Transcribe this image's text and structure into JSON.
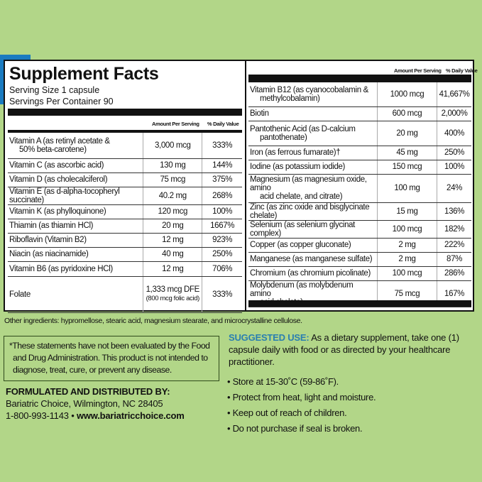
{
  "title": "Supplement Facts",
  "serving_size": "Serving Size 1 capsule",
  "servings_per_container": "Servings Per Container 90",
  "col_amount": "Amount Per Serving",
  "col_dv": "% Daily Value",
  "left_rows": [
    {
      "name": "Vitamin A (as retinyl acetate &",
      "name2": "50% beta-carotene)",
      "amount": "3,000 mcg",
      "dv": "333%"
    },
    {
      "name": "Vitamin C (as ascorbic acid)",
      "amount": "130 mg",
      "dv": "144%"
    },
    {
      "name": "Vitamin D (as cholecalciferol)",
      "amount": "75 mcg",
      "dv": "375%"
    },
    {
      "name": "Vitamin E (as d-alpha-tocopheryl succinate)",
      "amount": "40.2 mg",
      "dv": "268%"
    },
    {
      "name": "Vitamin K (as phylloquinone)",
      "amount": "120 mcg",
      "dv": "100%"
    },
    {
      "name": "Thiamin (as thiamin HCl)",
      "amount": "20 mg",
      "dv": "1667%"
    },
    {
      "name": "Riboflavin (Vitamin B2)",
      "amount": "12 mg",
      "dv": "923%"
    },
    {
      "name": "Niacin (as niacinamide)",
      "amount": "40 mg",
      "dv": "250%"
    },
    {
      "name": "Vitamin B6 (as pyridoxine HCl)",
      "amount": "12 mg",
      "dv": "706%"
    },
    {
      "name": "Folate",
      "amount": "1,333 mcg DFE",
      "amount2": "(800 mcg folic acid)",
      "dv": "333%"
    }
  ],
  "right_rows": [
    {
      "name": "Vitamin B12 (as cyanocobalamin &",
      "name2": "methylcobalamin)",
      "amount": "1000 mcg",
      "dv": "41,667%"
    },
    {
      "name": "Biotin",
      "amount": "600 mcg",
      "dv": "2,000%"
    },
    {
      "name": "Pantothenic Acid (as D-calcium",
      "name2": "pantothenate)",
      "amount": "20 mg",
      "dv": "400%"
    },
    {
      "name": "Iron (as ferrous fumarate)†",
      "amount": "45 mg",
      "dv": "250%"
    },
    {
      "name": "Iodine (as potassium iodide)",
      "amount": "150 mcg",
      "dv": "100%"
    },
    {
      "name": "Magnesium (as magnesium oxide, amino",
      "name2": "acid chelate, and citrate)",
      "amount": "100 mg",
      "dv": "24%"
    },
    {
      "name": "Zinc (as zinc oxide and bisglycinate chelate)",
      "amount": "15 mg",
      "dv": "136%"
    },
    {
      "name": "Selenium (as selenium glycinat complex)",
      "amount": "100 mcg",
      "dv": "182%"
    },
    {
      "name": "Copper (as copper gluconate)",
      "amount": "2 mg",
      "dv": "222%"
    },
    {
      "name": "Manganese (as manganese sulfate)",
      "amount": "2 mg",
      "dv": "87%"
    },
    {
      "name": "Chromium (as chromium picolinate)",
      "amount": "100 mcg",
      "dv": "286%"
    },
    {
      "name": "Molybdenum (as molybdenum amino",
      "name2": "acid chelate)",
      "amount": "75 mcg",
      "dv": "167%"
    }
  ],
  "other_ingredients": "Other ingredients: hypromellose, stearic acid, magnesium stearate, and microcrystalline cellulose.",
  "fda_disclaimer": "*These statements have not been evaluated by the Food and Drug Administration. This product is not intended to diagnose, treat, cure, or prevent any disease.",
  "distributor": {
    "heading": "FORMULATED AND DISTRIBUTED BY:",
    "address": "Bariatric Choice, Wilmington, NC 28405",
    "phone": "1-800-993-1143",
    "separator": "•",
    "website": "www.bariatricchoice.com"
  },
  "suggested_use": {
    "label": "SUGGESTED USE:",
    "text": "As a dietary supplement, take one (1) capsule daily with food or as directed by your healthcare practitioner."
  },
  "bullets": [
    "• Store at 15-30˚C (59-86˚F).",
    "• Protect from heat, light and moisture.",
    "• Keep out of reach of children.",
    "• Do not purchase if seal is broken."
  ],
  "colors": {
    "background": "#b2d688",
    "accent_blue": "#2a7fb0",
    "stripe_blue": "#1a7bc0"
  }
}
